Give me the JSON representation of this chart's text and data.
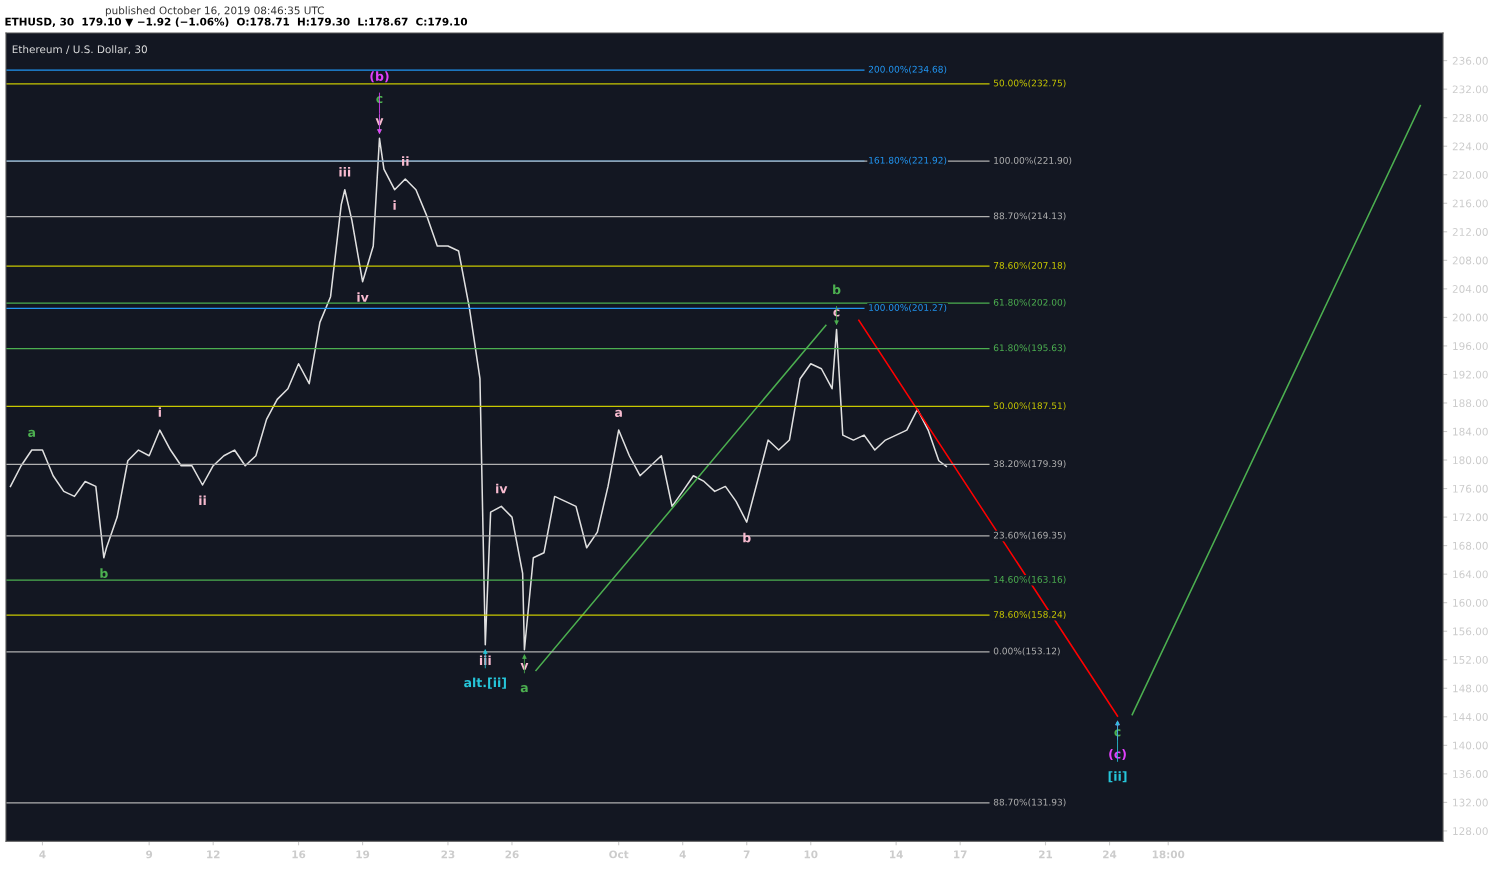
{
  "chart_data": {
    "type": "line",
    "title": "ETHUSD, 30  179.10 ▼ −1.92 (−1.06%)  O:178.71  H:179.30  L:178.67  C:179.10",
    "subtitle": "Ethereum / U.S. Dollar, 30",
    "xlim": [
      "2019-09-02T07:00",
      "2019-11-08T15:00"
    ],
    "ylim": [
      126.56,
      239.87
    ],
    "yticks": [
      {
        "value": 128,
        "label": "128.00"
      },
      {
        "value": 132,
        "label": "132.00"
      },
      {
        "value": 136,
        "label": "136.00"
      },
      {
        "value": 140,
        "label": "140.00"
      },
      {
        "value": 144,
        "label": "144.00"
      },
      {
        "value": 148,
        "label": "148.00"
      },
      {
        "value": 152,
        "label": "152.00"
      },
      {
        "value": 156,
        "label": "156.00"
      },
      {
        "value": 160,
        "label": "160.00"
      },
      {
        "value": 164,
        "label": "164.00"
      },
      {
        "value": 168,
        "label": "168.00"
      },
      {
        "value": 172,
        "label": "172.00"
      },
      {
        "value": 176,
        "label": "176.00"
      },
      {
        "value": 180,
        "label": "180.00"
      },
      {
        "value": 184,
        "label": "184.00"
      },
      {
        "value": 188,
        "label": "188.00"
      },
      {
        "value": 192,
        "label": "192.00"
      },
      {
        "value": 196,
        "label": "196.00"
      },
      {
        "value": 200,
        "label": "200.00"
      },
      {
        "value": 204,
        "label": "204.00"
      },
      {
        "value": 208,
        "label": "208.00"
      },
      {
        "value": 212,
        "label": "212.00"
      },
      {
        "value": 216,
        "label": "216.00"
      },
      {
        "value": 220,
        "label": "220.00"
      },
      {
        "value": 224,
        "label": "224.00"
      },
      {
        "value": 228,
        "label": "228.00"
      },
      {
        "value": 232,
        "label": "232.00"
      },
      {
        "value": 236,
        "label": "236.00"
      }
    ],
    "xticks": [
      {
        "value": "2019-09-04",
        "label": "4"
      },
      {
        "value": "2019-09-09",
        "label": "9"
      },
      {
        "value": "2019-09-12",
        "label": "12"
      },
      {
        "value": "2019-09-16",
        "label": "16"
      },
      {
        "value": "2019-09-19",
        "label": "19"
      },
      {
        "value": "2019-09-23",
        "label": "23"
      },
      {
        "value": "2019-09-26",
        "label": "26"
      },
      {
        "value": "2019-10-01",
        "label": "Oct"
      },
      {
        "value": "2019-10-04",
        "label": "4"
      },
      {
        "value": "2019-10-07",
        "label": "7"
      },
      {
        "value": "2019-10-10",
        "label": "10"
      },
      {
        "value": "2019-10-14",
        "label": "14"
      },
      {
        "value": "2019-10-17",
        "label": "17"
      },
      {
        "value": "2019-10-21",
        "label": "21"
      },
      {
        "value": "2019-10-24",
        "label": "24"
      },
      {
        "value": "2019-10-26T18:00",
        "label": "18:00"
      }
    ],
    "grid": false,
    "legend": false,
    "series": [
      {
        "color": "#e0e0e0",
        "x": [
          "2019-09-02T12:00",
          "2019-09-03T00:00",
          "2019-09-03T12:00",
          "2019-09-04T00:00",
          "2019-09-04T12:00",
          "2019-09-05T00:00",
          "2019-09-05T12:00",
          "2019-09-06T00:00",
          "2019-09-06T12:00",
          "2019-09-06T21:00",
          "2019-09-07T00:00",
          "2019-09-07T12:00",
          "2019-09-08T00:00",
          "2019-09-08T12:00",
          "2019-09-09T00:00",
          "2019-09-09T12:00",
          "2019-09-10T00:00",
          "2019-09-10T12:00",
          "2019-09-11T00:00",
          "2019-09-11T12:00",
          "2019-09-12T00:00",
          "2019-09-12T12:00",
          "2019-09-13T00:00",
          "2019-09-13T12:00",
          "2019-09-14T00:00",
          "2019-09-14T12:00",
          "2019-09-15T00:00",
          "2019-09-15T12:00",
          "2019-09-16T00:00",
          "2019-09-16T12:00",
          "2019-09-17T00:00",
          "2019-09-17T12:00",
          "2019-09-18T00:00",
          "2019-09-18T04:00",
          "2019-09-18T12:00",
          "2019-09-19T00:00",
          "2019-09-19T12:00",
          "2019-09-19T19:00",
          "2019-09-20T00:00",
          "2019-09-20T12:00",
          "2019-09-21T00:00",
          "2019-09-21T12:00",
          "2019-09-22T00:00",
          "2019-09-22T12:00",
          "2019-09-23T00:00",
          "2019-09-23T12:00",
          "2019-09-24T00:00",
          "2019-09-24T12:00",
          "2019-09-24T18:00",
          "2019-09-25T00:00",
          "2019-09-25T12:00",
          "2019-09-26T00:00",
          "2019-09-26T12:00",
          "2019-09-26T14:00",
          "2019-09-27T00:00",
          "2019-09-27T12:00",
          "2019-09-28T00:00",
          "2019-09-28T12:00",
          "2019-09-29T00:00",
          "2019-09-29T12:00",
          "2019-09-30T00:00",
          "2019-09-30T12:00",
          "2019-10-01T00:00",
          "2019-10-01T12:00",
          "2019-10-02T00:00",
          "2019-10-02T12:00",
          "2019-10-03T00:00",
          "2019-10-03T12:00",
          "2019-10-04T00:00",
          "2019-10-04T12:00",
          "2019-10-05T00:00",
          "2019-10-05T12:00",
          "2019-10-06T00:00",
          "2019-10-06T12:00",
          "2019-10-07T00:00",
          "2019-10-07T12:00",
          "2019-10-08T00:00",
          "2019-10-08T12:00",
          "2019-10-09T00:00",
          "2019-10-09T12:00",
          "2019-10-10T00:00",
          "2019-10-10T12:00",
          "2019-10-11T00:00",
          "2019-10-11T05:00",
          "2019-10-11T12:00",
          "2019-10-12T00:00",
          "2019-10-12T12:00",
          "2019-10-13T00:00",
          "2019-10-13T12:00",
          "2019-10-14T00:00",
          "2019-10-14T12:00",
          "2019-10-15T00:00",
          "2019-10-15T12:00",
          "2019-10-16T00:00",
          "2019-10-16T08:30"
        ],
        "values": [
          176.3,
          179.2,
          181.4,
          181.4,
          177.8,
          175.6,
          174.9,
          177.0,
          176.3,
          166.3,
          167.7,
          172.0,
          179.9,
          181.4,
          180.6,
          184.2,
          181.4,
          179.2,
          179.2,
          176.5,
          179.2,
          180.6,
          181.4,
          179.2,
          180.6,
          185.7,
          188.5,
          190.0,
          193.5,
          190.7,
          199.3,
          202.9,
          215.8,
          217.9,
          213.6,
          205.0,
          210.0,
          225.1,
          220.8,
          217.9,
          219.4,
          217.9,
          214.3,
          210.0,
          210.0,
          209.3,
          201.4,
          191.4,
          154.1,
          172.7,
          173.5,
          172.0,
          164.1,
          153.4,
          166.3,
          167.0,
          174.9,
          174.2,
          173.5,
          167.7,
          169.9,
          176.3,
          184.2,
          180.6,
          177.8,
          179.2,
          180.6,
          173.5,
          175.6,
          177.8,
          177.0,
          175.6,
          176.3,
          174.2,
          171.3,
          177.0,
          182.8,
          181.4,
          182.8,
          191.4,
          193.5,
          192.8,
          190.0,
          198.3,
          183.5,
          182.8,
          183.5,
          181.4,
          182.8,
          183.5,
          184.2,
          187.1,
          184.2,
          179.9,
          179.1
        ]
      },
      {
        "color": "#4caf50",
        "x": [
          "2019-09-27T03:00",
          "2019-10-10T17:00"
        ],
        "values": [
          150.5,
          198.9
        ]
      },
      {
        "color": "#ff0000",
        "x": [
          "2019-10-12T06:00",
          "2019-10-24T09:00"
        ],
        "values": [
          199.6,
          144.1
        ]
      },
      {
        "color": "#4caf50",
        "x": [
          "2019-10-25T01:30",
          "2019-11-07T13:30"
        ],
        "values": [
          144.3,
          229.7
        ]
      }
    ],
    "ref_lines": [
      {
        "axis": "y",
        "value": 234.68,
        "label": "200.00%(234.68)",
        "color": "#2196f3"
      },
      {
        "axis": "y",
        "value": 232.75,
        "label": "50.00%(232.75)",
        "color": "#c8c800"
      },
      {
        "axis": "y",
        "value": 221.92,
        "label": "161.80%(221.92)",
        "color": "#2196f3"
      },
      {
        "axis": "y",
        "value": 221.9,
        "label": "100.00%(221.90)",
        "color": "#b0b0b0"
      },
      {
        "axis": "y",
        "value": 214.13,
        "label": "88.70%(214.13)",
        "color": "#b0b0b0"
      },
      {
        "axis": "y",
        "value": 207.18,
        "label": "78.60%(207.18)",
        "color": "#c8c800"
      },
      {
        "axis": "y",
        "value": 202.0,
        "label": "61.80%(202.00)",
        "color": "#4caf50"
      },
      {
        "axis": "y",
        "value": 201.27,
        "label": "100.00%(201.27)",
        "color": "#2196f3"
      },
      {
        "axis": "y",
        "value": 195.63,
        "label": "61.80%(195.63)",
        "color": "#4caf50"
      },
      {
        "axis": "y",
        "value": 187.51,
        "label": "50.00%(187.51)",
        "color": "#c8c800"
      },
      {
        "axis": "y",
        "value": 179.39,
        "label": "38.20%(179.39)",
        "color": "#b0b0b0"
      },
      {
        "axis": "y",
        "value": 169.35,
        "label": "23.60%(169.35)",
        "color": "#b0b0b0"
      },
      {
        "axis": "y",
        "value": 163.16,
        "label": "14.60%(163.16)",
        "color": "#4caf50"
      },
      {
        "axis": "y",
        "value": 158.24,
        "label": "78.60%(158.24)",
        "color": "#c8c800"
      },
      {
        "axis": "y",
        "value": 153.12,
        "label": "0.00%(153.12)",
        "color": "#b0b0b0"
      },
      {
        "axis": "y",
        "value": 131.93,
        "label": "88.70%(131.93)",
        "color": "#b0b0b0"
      }
    ],
    "annotations": [
      "published October 16, 2019 08:46:35 UTC",
      {
        "text": "a",
        "x": "2019-09-03T12:00",
        "y": 181.4
      },
      {
        "text": "b",
        "x": "2019-09-06T21:00",
        "y": 166.3
      },
      {
        "text": "i",
        "x": "2019-09-09T12:00",
        "y": 184.2
      },
      {
        "text": "ii",
        "x": "2019-09-11T12:00",
        "y": 176.5
      },
      {
        "text": "iii",
        "x": "2019-09-18T04:00",
        "y": 217.9
      },
      {
        "text": "iv",
        "x": "2019-09-19T00:00",
        "y": 205.0
      },
      {
        "text": "v",
        "x": "2019-09-19T19:00",
        "y": 225.1
      },
      {
        "text": "c",
        "x": "2019-09-19T19:00",
        "y": 225.1
      },
      {
        "text": "(b)",
        "x": "2019-09-19T19:00",
        "y": 225.1
      },
      {
        "text": "ii",
        "x": "2019-09-21T00:00",
        "y": 219.4
      },
      {
        "text": "i",
        "x": "2019-09-20T12:00",
        "y": 217.9
      },
      {
        "text": "iii",
        "x": "2019-09-24T18:00",
        "y": 154.1
      },
      {
        "text": "alt.[ii]",
        "x": "2019-09-24T18:00",
        "y": 154.1
      },
      {
        "text": "iv",
        "x": "2019-09-25T12:00",
        "y": 173.5
      },
      {
        "text": "v",
        "x": "2019-09-26T14:00",
        "y": 153.4
      },
      {
        "text": "a",
        "x": "2019-09-26T14:00",
        "y": 153.4
      },
      {
        "text": "a",
        "x": "2019-10-01T00:00",
        "y": 184.2
      },
      {
        "text": "b",
        "x": "2019-10-07T00:00",
        "y": 171.3
      },
      {
        "text": "c",
        "x": "2019-10-11T05:00",
        "y": 198.3
      },
      {
        "text": "b",
        "x": "2019-10-11T05:00",
        "y": 198.3
      },
      {
        "text": "c",
        "x": "2019-10-24T09:00",
        "y": 144.1
      },
      {
        "text": "(c)",
        "x": "2019-10-24T09:00",
        "y": 144.1
      },
      {
        "text": "[ii]",
        "x": "2019-10-24T09:00",
        "y": 144.1
      }
    ]
  }
}
